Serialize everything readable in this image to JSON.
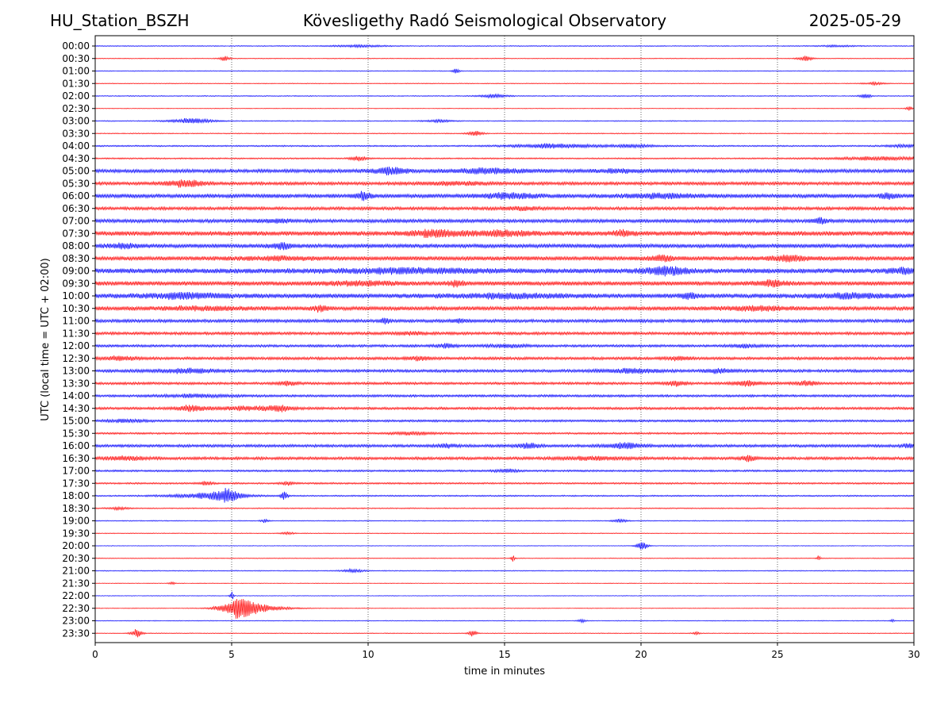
{
  "header": {
    "station": "HU_Station_BSZH",
    "observatory": "Kövesligethy Radó Seismological Observatory",
    "date": "2025-05-29"
  },
  "chart_data": {
    "type": "line",
    "title": "Kövesligethy Radó Seismological Observatory",
    "xlabel": "time in minutes",
    "ylabel": "UTC (local time = UTC + 02:00)",
    "xlim": [
      0,
      30
    ],
    "x_ticks": [
      0,
      5,
      10,
      15,
      20,
      25,
      30
    ],
    "grid": "vertical dotted lines at 5, 10, 15, 20, 25 minutes",
    "colors": {
      "odd_rows": "#0000ff",
      "even_rows": "#ff0000"
    },
    "rows": [
      {
        "label": "00:00",
        "color": "#0000ff",
        "noise": 0.6,
        "events": [
          [
            9.5,
            0.8,
            1.2
          ],
          [
            27,
            0.6,
            0.8
          ]
        ]
      },
      {
        "label": "00:30",
        "color": "#ff0000",
        "noise": 0.5,
        "events": [
          [
            4.7,
            0.15,
            3
          ],
          [
            26,
            0.2,
            3
          ]
        ]
      },
      {
        "label": "01:00",
        "color": "#0000ff",
        "noise": 0.5,
        "events": [
          [
            13.2,
            0.1,
            2.5
          ]
        ]
      },
      {
        "label": "01:30",
        "color": "#ff0000",
        "noise": 0.5,
        "events": [
          [
            28.5,
            0.3,
            1.5
          ]
        ]
      },
      {
        "label": "02:00",
        "color": "#0000ff",
        "noise": 0.6,
        "events": [
          [
            14.5,
            0.4,
            2
          ],
          [
            28.2,
            0.15,
            3
          ]
        ]
      },
      {
        "label": "02:30",
        "color": "#ff0000",
        "noise": 0.4,
        "events": [
          [
            29.8,
            0.1,
            2.5
          ]
        ]
      },
      {
        "label": "03:00",
        "color": "#0000ff",
        "noise": 0.6,
        "events": [
          [
            3.4,
            0.6,
            3
          ],
          [
            12.5,
            0.4,
            1.5
          ]
        ]
      },
      {
        "label": "03:30",
        "color": "#ff0000",
        "noise": 0.6,
        "events": [
          [
            13.9,
            0.2,
            3
          ]
        ]
      },
      {
        "label": "04:00",
        "color": "#0000ff",
        "noise": 0.9,
        "events": [
          [
            16.5,
            1.2,
            2.5
          ],
          [
            19.5,
            0.8,
            1.5
          ],
          [
            29.5,
            0.5,
            1.5
          ]
        ]
      },
      {
        "label": "04:30",
        "color": "#ff0000",
        "noise": 0.9,
        "events": [
          [
            9.6,
            0.2,
            3
          ],
          [
            28.5,
            1.5,
            2
          ]
        ]
      },
      {
        "label": "05:00",
        "color": "#0000ff",
        "noise": 2.2,
        "events": [
          [
            10.7,
            0.5,
            3.5
          ],
          [
            14.2,
            1.0,
            2.5
          ],
          [
            19.0,
            0.8,
            1.5
          ]
        ]
      },
      {
        "label": "05:30",
        "color": "#ff0000",
        "noise": 2.0,
        "events": [
          [
            3.2,
            0.5,
            4
          ],
          [
            13.0,
            1.0,
            1.5
          ]
        ]
      },
      {
        "label": "06:00",
        "color": "#0000ff",
        "noise": 2.5,
        "events": [
          [
            9.8,
            0.2,
            4
          ],
          [
            15.0,
            0.8,
            2.5
          ],
          [
            20.5,
            1.0,
            2
          ],
          [
            29.0,
            0.2,
            3
          ]
        ]
      },
      {
        "label": "06:30",
        "color": "#ff0000",
        "noise": 2.0,
        "events": [
          [
            15.5,
            0.5,
            1.5
          ]
        ]
      },
      {
        "label": "07:00",
        "color": "#0000ff",
        "noise": 2.2,
        "events": [
          [
            26.5,
            0.2,
            3
          ],
          [
            6.5,
            0.5,
            1.5
          ]
        ]
      },
      {
        "label": "07:30",
        "color": "#ff0000",
        "noise": 2.8,
        "events": [
          [
            12.3,
            0.8,
            3
          ],
          [
            14.8,
            0.8,
            2.5
          ],
          [
            19.3,
            0.3,
            3
          ]
        ]
      },
      {
        "label": "08:00",
        "color": "#0000ff",
        "noise": 2.5,
        "events": [
          [
            1.0,
            0.5,
            2
          ],
          [
            6.8,
            0.3,
            3
          ]
        ]
      },
      {
        "label": "08:30",
        "color": "#ff0000",
        "noise": 2.6,
        "events": [
          [
            20.7,
            0.3,
            3
          ],
          [
            25.3,
            0.5,
            3
          ],
          [
            6.5,
            1.0,
            1.5
          ]
        ]
      },
      {
        "label": "09:00",
        "color": "#0000ff",
        "noise": 3.0,
        "events": [
          [
            11.0,
            2.0,
            2
          ],
          [
            20.8,
            0.6,
            4
          ],
          [
            29.6,
            0.4,
            3
          ]
        ]
      },
      {
        "label": "09:30",
        "color": "#ff0000",
        "noise": 2.6,
        "events": [
          [
            13.2,
            0.2,
            3
          ],
          [
            24.7,
            0.4,
            3
          ],
          [
            9.5,
            1.0,
            1.8
          ]
        ]
      },
      {
        "label": "10:00",
        "color": "#0000ff",
        "noise": 2.8,
        "events": [
          [
            3.0,
            1.2,
            2.5
          ],
          [
            14.8,
            1.5,
            2
          ],
          [
            27.5,
            1.0,
            2
          ],
          [
            21.7,
            0.2,
            3
          ]
        ]
      },
      {
        "label": "10:30",
        "color": "#ff0000",
        "noise": 2.4,
        "events": [
          [
            8.2,
            0.2,
            3
          ],
          [
            24.0,
            1.0,
            2
          ],
          [
            3.5,
            1.5,
            1.5
          ]
        ]
      },
      {
        "label": "11:00",
        "color": "#0000ff",
        "noise": 2.0,
        "events": [
          [
            10.6,
            0.1,
            4
          ],
          [
            13.3,
            0.2,
            1.5
          ]
        ]
      },
      {
        "label": "11:30",
        "color": "#ff0000",
        "noise": 1.8,
        "events": [
          [
            11.5,
            0.4,
            1.5
          ]
        ]
      },
      {
        "label": "12:00",
        "color": "#0000ff",
        "noise": 1.6,
        "events": [
          [
            12.8,
            0.3,
            2
          ],
          [
            15.0,
            0.6,
            1.5
          ],
          [
            23.7,
            0.4,
            1.8
          ]
        ]
      },
      {
        "label": "12:30",
        "color": "#ff0000",
        "noise": 1.8,
        "events": [
          [
            0.8,
            0.5,
            2
          ],
          [
            11.8,
            0.3,
            2
          ],
          [
            21.3,
            0.3,
            2
          ]
        ]
      },
      {
        "label": "13:00",
        "color": "#0000ff",
        "noise": 1.8,
        "events": [
          [
            3.2,
            0.8,
            2.5
          ],
          [
            19.5,
            0.8,
            2.2
          ],
          [
            22.8,
            0.4,
            2.2
          ]
        ]
      },
      {
        "label": "13:30",
        "color": "#ff0000",
        "noise": 1.6,
        "events": [
          [
            21.2,
            0.3,
            3
          ],
          [
            23.8,
            0.4,
            3
          ],
          [
            26.0,
            0.3,
            2.5
          ],
          [
            7.0,
            0.3,
            2
          ]
        ]
      },
      {
        "label": "14:00",
        "color": "#0000ff",
        "noise": 1.5,
        "events": [
          [
            3.5,
            1.0,
            1.5
          ]
        ]
      },
      {
        "label": "14:30",
        "color": "#ff0000",
        "noise": 1.6,
        "events": [
          [
            3.4,
            0.4,
            3
          ],
          [
            6.7,
            0.3,
            3
          ],
          [
            5.5,
            1.0,
            2
          ]
        ]
      },
      {
        "label": "15:00",
        "color": "#0000ff",
        "noise": 1.4,
        "events": [
          [
            1.0,
            0.6,
            1.5
          ]
        ]
      },
      {
        "label": "15:30",
        "color": "#ff0000",
        "noise": 1.2,
        "events": [
          [
            11.5,
            0.6,
            1.5
          ]
        ]
      },
      {
        "label": "16:00",
        "color": "#0000ff",
        "noise": 1.8,
        "events": [
          [
            15.8,
            0.3,
            3
          ],
          [
            19.3,
            0.5,
            3
          ],
          [
            12.8,
            0.3,
            2
          ],
          [
            29.8,
            0.2,
            2.5
          ]
        ]
      },
      {
        "label": "16:30",
        "color": "#ff0000",
        "noise": 1.8,
        "events": [
          [
            1.0,
            0.6,
            2
          ],
          [
            23.9,
            0.2,
            3
          ],
          [
            18.0,
            1.0,
            1.5
          ]
        ]
      },
      {
        "label": "17:00",
        "color": "#0000ff",
        "noise": 1.2,
        "events": [
          [
            15.0,
            0.3,
            2
          ]
        ]
      },
      {
        "label": "17:30",
        "color": "#ff0000",
        "noise": 1.1,
        "events": [
          [
            4.0,
            0.2,
            2
          ],
          [
            7.0,
            0.2,
            2
          ]
        ]
      },
      {
        "label": "18:00",
        "color": "#0000ff",
        "noise": 0.9,
        "events": [
          [
            4.0,
            1.0,
            3.5
          ],
          [
            4.8,
            0.3,
            7
          ],
          [
            6.9,
            0.1,
            5
          ]
        ]
      },
      {
        "label": "18:30",
        "color": "#ff0000",
        "noise": 0.7,
        "events": [
          [
            0.8,
            0.3,
            1.5
          ]
        ]
      },
      {
        "label": "19:00",
        "color": "#0000ff",
        "noise": 0.6,
        "events": [
          [
            6.2,
            0.1,
            2
          ],
          [
            19.2,
            0.2,
            2
          ]
        ]
      },
      {
        "label": "19:30",
        "color": "#ff0000",
        "noise": 0.5,
        "events": [
          [
            7.0,
            0.2,
            1.5
          ]
        ]
      },
      {
        "label": "20:00",
        "color": "#0000ff",
        "noise": 0.4,
        "events": [
          [
            20.0,
            0.15,
            6
          ]
        ]
      },
      {
        "label": "20:30",
        "color": "#ff0000",
        "noise": 0.5,
        "events": [
          [
            15.3,
            0.05,
            4
          ],
          [
            26.5,
            0.05,
            3
          ]
        ]
      },
      {
        "label": "21:00",
        "color": "#0000ff",
        "noise": 0.6,
        "events": [
          [
            9.4,
            0.3,
            2
          ]
        ]
      },
      {
        "label": "21:30",
        "color": "#ff0000",
        "noise": 0.4,
        "events": [
          [
            2.8,
            0.1,
            1.5
          ]
        ]
      },
      {
        "label": "22:00",
        "color": "#0000ff",
        "noise": 0.4,
        "events": [
          [
            5.0,
            0.05,
            6
          ]
        ]
      },
      {
        "label": "22:30",
        "color": "#ff0000",
        "noise": 0.4,
        "events": [
          [
            5.2,
            0.5,
            12
          ],
          [
            6.0,
            0.8,
            3
          ]
        ]
      },
      {
        "label": "23:00",
        "color": "#0000ff",
        "noise": 0.5,
        "events": [
          [
            17.8,
            0.1,
            2.5
          ],
          [
            29.2,
            0.05,
            2
          ]
        ]
      },
      {
        "label": "23:30",
        "color": "#ff0000",
        "noise": 0.5,
        "events": [
          [
            1.5,
            0.15,
            5
          ],
          [
            13.8,
            0.12,
            4
          ],
          [
            22.0,
            0.1,
            2
          ]
        ]
      }
    ]
  }
}
